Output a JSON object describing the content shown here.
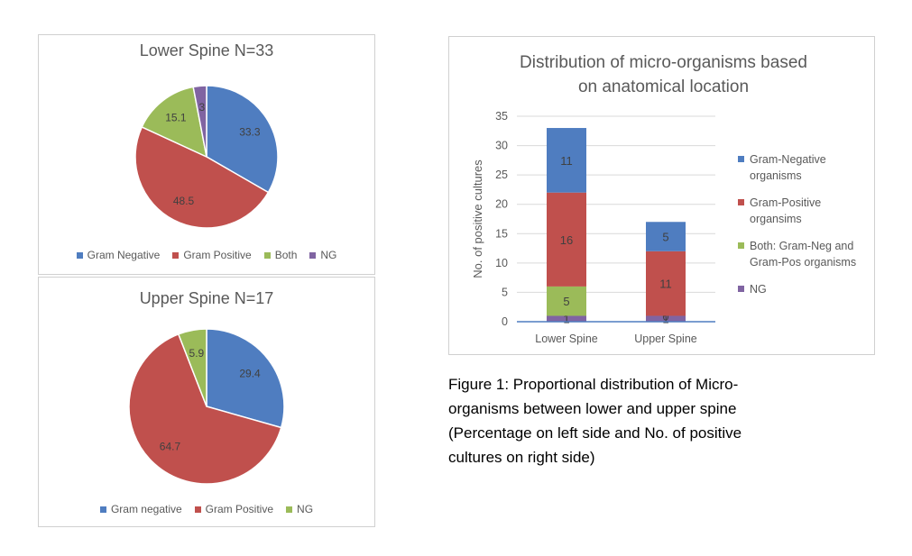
{
  "colors": {
    "blue": "#4f7dc0",
    "red": "#c0504d",
    "green": "#9bbb59",
    "purple": "#8064a2",
    "text": "#595959",
    "grid": "#d9d9d9"
  },
  "chart_data": [
    {
      "type": "pie",
      "title": "Lower Spine N=33",
      "labels": [
        "Gram Negative",
        "Gram Positive",
        "Both",
        "NG"
      ],
      "values": [
        33.3,
        48.5,
        15.1,
        3
      ],
      "data_labels": [
        "33.3",
        "48.5",
        "15.1",
        "3"
      ],
      "colors": [
        "#4f7dc0",
        "#c0504d",
        "#9bbb59",
        "#8064a2"
      ],
      "legend_position": "bottom"
    },
    {
      "type": "pie",
      "title": "Upper Spine N=17",
      "labels": [
        "Gram negative",
        "Gram Positive",
        "NG"
      ],
      "values": [
        29.4,
        64.7,
        5.9
      ],
      "data_labels": [
        "29.4",
        "64.7",
        "5.9"
      ],
      "colors": [
        "#4f7dc0",
        "#c0504d",
        "#9bbb59"
      ],
      "legend_position": "bottom"
    },
    {
      "type": "bar",
      "stacked": true,
      "title": "Distribution of micro-organisms based on anatomical location",
      "title_lines": [
        "Distribution of micro-organisms based",
        "on anatomical location"
      ],
      "ylabel": "No. of positive cultures",
      "categories": [
        "Lower Spine",
        "Upper Spine"
      ],
      "ylim": [
        0,
        35
      ],
      "yticks": [
        "0",
        "5",
        "10",
        "15",
        "20",
        "25",
        "30",
        "35"
      ],
      "grid": true,
      "legend_position": "right",
      "series": [
        {
          "name": "NG",
          "values": [
            1,
            1
          ],
          "labels": [
            "1",
            "1"
          ],
          "color": "#8064a2"
        },
        {
          "name": "Both: Gram-Neg and Gram-Pos organisms",
          "legend_lines": [
            "Both: Gram-Neg and",
            "Gram-Pos organisms"
          ],
          "values": [
            5,
            0
          ],
          "labels": [
            "5",
            "0"
          ],
          "color": "#9bbb59"
        },
        {
          "name": "Gram-Positive organsims",
          "legend_lines": [
            "Gram-Positive",
            "organsims"
          ],
          "values": [
            16,
            11
          ],
          "labels": [
            "16",
            "11"
          ],
          "color": "#c0504d"
        },
        {
          "name": "Gram-Negative organisms",
          "legend_lines": [
            "Gram-Negative",
            "organisms"
          ],
          "values": [
            11,
            5
          ],
          "labels": [
            "11",
            "5"
          ],
          "color": "#4f7dc0"
        }
      ]
    }
  ],
  "caption_lines": [
    "Figure 1: Proportional distribution of Micro-",
    "organisms between lower and upper spine",
    "(Percentage on left side and No. of positive",
    "cultures on right side)"
  ]
}
